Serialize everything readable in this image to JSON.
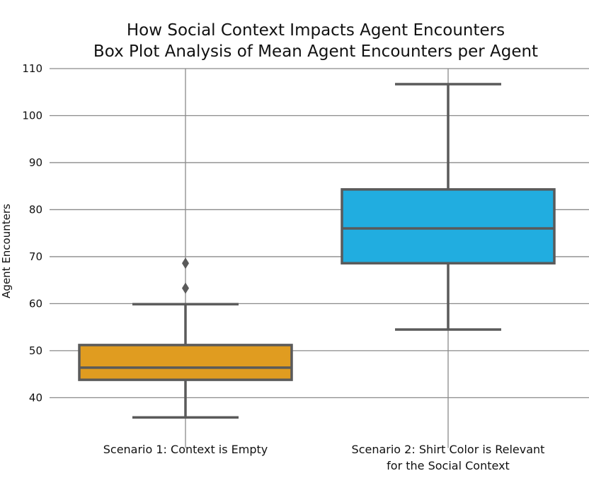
{
  "chart_data": {
    "type": "box",
    "title": "How Social Context Impacts Agent Encounters",
    "subtitle": "Box Plot Analysis of Mean Agent Encounters per Agent",
    "xlabel": "",
    "ylabel": "Agent Encounters",
    "ylim": [
      32,
      110
    ],
    "yticks": [
      40,
      50,
      60,
      70,
      80,
      90,
      100,
      110
    ],
    "grid": true,
    "categories": [
      [
        "Scenario 1: Context is Empty"
      ],
      [
        "Scenario 2: Shirt Color is Relevant",
        "for the Social Context"
      ]
    ],
    "boxes": [
      {
        "whisker_low": 35.8,
        "q1": 43.8,
        "median": 46.4,
        "q3": 51.2,
        "whisker_high": 59.9,
        "outliers": [
          63.3,
          68.6
        ],
        "color": "#e09c20"
      },
      {
        "whisker_low": 54.5,
        "q1": 68.6,
        "median": 76.0,
        "q3": 84.3,
        "whisker_high": 106.7,
        "outliers": [],
        "color": "#21ade0"
      }
    ]
  }
}
